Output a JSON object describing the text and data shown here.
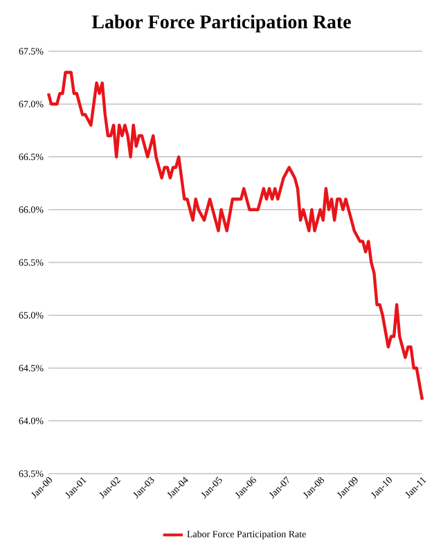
{
  "chart_data": {
    "type": "line",
    "title": "Labor Force Participation Rate",
    "x": [
      "2000-01",
      "2000-02",
      "2000-04",
      "2000-05",
      "2000-06",
      "2000-07",
      "2000-09",
      "2000-10",
      "2000-11",
      "2001-01",
      "2001-02",
      "2001-04",
      "2001-05",
      "2001-06",
      "2001-07",
      "2001-08",
      "2001-09",
      "2001-10",
      "2001-11",
      "2001-12",
      "2002-01",
      "2002-02",
      "2002-03",
      "2002-04",
      "2002-05",
      "2002-06",
      "2002-07",
      "2002-08",
      "2002-09",
      "2002-10",
      "2002-11",
      "2002-12",
      "2003-02",
      "2003-03",
      "2003-05",
      "2003-06",
      "2003-07",
      "2003-08",
      "2003-09",
      "2003-10",
      "2003-11",
      "2004-01",
      "2004-02",
      "2004-03",
      "2004-04",
      "2004-05",
      "2004-06",
      "2004-08",
      "2004-09",
      "2004-10",
      "2004-11",
      "2005-01",
      "2005-02",
      "2005-03",
      "2005-04",
      "2005-06",
      "2005-07",
      "2005-09",
      "2005-10",
      "2005-11",
      "2005-12",
      "2006-02",
      "2006-03",
      "2006-05",
      "2006-06",
      "2006-07",
      "2006-08",
      "2006-09",
      "2006-10",
      "2006-11",
      "2006-12",
      "2007-02",
      "2007-04",
      "2007-05",
      "2007-06",
      "2007-07",
      "2007-08",
      "2007-09",
      "2007-10",
      "2007-11",
      "2008-01",
      "2008-02",
      "2008-03",
      "2008-04",
      "2008-05",
      "2008-06",
      "2008-07",
      "2008-08",
      "2008-09",
      "2008-10",
      "2008-11",
      "2009-01",
      "2009-03",
      "2009-04",
      "2009-05",
      "2009-06",
      "2009-07",
      "2009-08",
      "2009-09",
      "2009-10",
      "2009-11",
      "2010-01",
      "2010-02",
      "2010-03",
      "2010-04",
      "2010-05",
      "2010-07",
      "2010-08",
      "2010-09",
      "2010-10",
      "2010-11",
      "2011-01"
    ],
    "series": [
      {
        "name": "Labor Force Participation Rate",
        "color": "#e8141a",
        "values": [
          67.1,
          67.0,
          67.0,
          67.1,
          67.1,
          67.3,
          67.3,
          67.1,
          67.1,
          66.9,
          66.9,
          66.8,
          67.0,
          67.2,
          67.1,
          67.2,
          66.9,
          66.7,
          66.7,
          66.8,
          66.5,
          66.8,
          66.7,
          66.8,
          66.7,
          66.5,
          66.8,
          66.6,
          66.7,
          66.7,
          66.6,
          66.5,
          66.7,
          66.5,
          66.3,
          66.4,
          66.4,
          66.3,
          66.4,
          66.4,
          66.5,
          66.1,
          66.1,
          66.0,
          65.9,
          66.1,
          66.0,
          65.9,
          66.0,
          66.1,
          66.0,
          65.8,
          66.0,
          65.9,
          65.8,
          66.1,
          66.1,
          66.1,
          66.2,
          66.1,
          66.0,
          66.0,
          66.0,
          66.2,
          66.1,
          66.2,
          66.1,
          66.2,
          66.1,
          66.2,
          66.3,
          66.4,
          66.3,
          66.2,
          65.9,
          66.0,
          65.9,
          65.8,
          66.0,
          65.8,
          66.0,
          65.9,
          66.2,
          66.0,
          66.1,
          65.9,
          66.1,
          66.1,
          66.0,
          66.1,
          66.0,
          65.8,
          65.7,
          65.7,
          65.6,
          65.7,
          65.5,
          65.4,
          65.1,
          65.1,
          65.0,
          64.7,
          64.8,
          64.8,
          65.1,
          64.8,
          64.6,
          64.7,
          64.7,
          64.5,
          64.5,
          64.2
        ]
      }
    ],
    "xlim": [
      "2000-01",
      "2011-01"
    ],
    "xticks": [
      {
        "value": "2000-01",
        "label": "Jan-00"
      },
      {
        "value": "2001-01",
        "label": "Jan-01"
      },
      {
        "value": "2002-01",
        "label": "Jan-02"
      },
      {
        "value": "2003-01",
        "label": "Jan-03"
      },
      {
        "value": "2004-01",
        "label": "Jan-04"
      },
      {
        "value": "2005-01",
        "label": "Jan-05"
      },
      {
        "value": "2006-01",
        "label": "Jan-06"
      },
      {
        "value": "2007-01",
        "label": "Jan-07"
      },
      {
        "value": "2008-01",
        "label": "Jan-08"
      },
      {
        "value": "2009-01",
        "label": "Jan-09"
      },
      {
        "value": "2010-01",
        "label": "Jan-10"
      },
      {
        "value": "2011-01",
        "label": "Jan-11"
      }
    ],
    "ylim": [
      63.5,
      67.5
    ],
    "yticks": [
      {
        "value": 63.5,
        "label": "63.5%"
      },
      {
        "value": 64.0,
        "label": "64.0%"
      },
      {
        "value": 64.5,
        "label": "64.5%"
      },
      {
        "value": 65.0,
        "label": "65.0%"
      },
      {
        "value": 65.5,
        "label": "65.5%"
      },
      {
        "value": 66.0,
        "label": "66.0%"
      },
      {
        "value": 66.5,
        "label": "66.5%"
      },
      {
        "value": 67.0,
        "label": "67.0%"
      },
      {
        "value": 67.5,
        "label": "67.5%"
      }
    ],
    "grid": "y",
    "legend": "bottom",
    "line_style": "solid"
  }
}
